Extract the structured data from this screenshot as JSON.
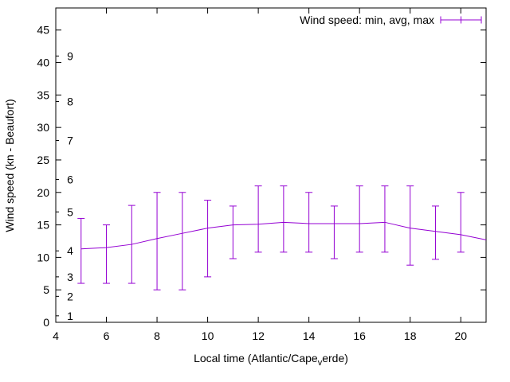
{
  "chart_data": {
    "type": "line",
    "title": "",
    "legend_label": "Wind speed: min, avg, max",
    "legend_position": "top-right",
    "xlabel_parts": {
      "pre": "Local time (Atlantic/Cape",
      "sub": "v",
      "post": "erde)"
    },
    "ylabel": "Wind speed (kn - Beaufort)",
    "xlim": [
      4,
      21
    ],
    "ylim": [
      0,
      48.4
    ],
    "xticks": [
      4,
      6,
      8,
      10,
      12,
      14,
      16,
      18,
      20
    ],
    "yticks": [
      0,
      5,
      10,
      15,
      20,
      25,
      30,
      35,
      40,
      45
    ],
    "beaufort_ticks": [
      {
        "label": "1",
        "kn": 1
      },
      {
        "label": "2",
        "kn": 4
      },
      {
        "label": "3",
        "kn": 7
      },
      {
        "label": "4",
        "kn": 11
      },
      {
        "label": "5",
        "kn": 17
      },
      {
        "label": "6",
        "kn": 22
      },
      {
        "label": "7",
        "kn": 28
      },
      {
        "label": "8",
        "kn": 34
      },
      {
        "label": "9",
        "kn": 41
      }
    ],
    "grid": false,
    "colors": {
      "series": "#9400d3",
      "axis": "#000000",
      "background": "#ffffff"
    },
    "points": [
      {
        "x": 5,
        "min": 6,
        "avg": 11.3,
        "max": 16
      },
      {
        "x": 6,
        "min": 6,
        "avg": 11.5,
        "max": 15
      },
      {
        "x": 7,
        "min": 6,
        "avg": 12,
        "max": 18
      },
      {
        "x": 8,
        "min": 5,
        "avg": 12.9,
        "max": 20
      },
      {
        "x": 9,
        "min": 5,
        "avg": 13.7,
        "max": 20
      },
      {
        "x": 10,
        "min": 7,
        "avg": 14.5,
        "max": 18.8
      },
      {
        "x": 11,
        "min": 9.8,
        "avg": 15,
        "max": 17.9
      },
      {
        "x": 12,
        "min": 10.8,
        "avg": 15.1,
        "max": 21
      },
      {
        "x": 13,
        "min": 10.8,
        "avg": 15.4,
        "max": 21
      },
      {
        "x": 14,
        "min": 10.8,
        "avg": 15.2,
        "max": 20
      },
      {
        "x": 15,
        "min": 9.8,
        "avg": 15.2,
        "max": 17.9
      },
      {
        "x": 16,
        "min": 10.8,
        "avg": 15.2,
        "max": 21
      },
      {
        "x": 17,
        "min": 10.8,
        "avg": 15.4,
        "max": 21
      },
      {
        "x": 18,
        "min": 8.8,
        "avg": 14.5,
        "max": 21
      },
      {
        "x": 19,
        "min": 9.7,
        "avg": 14,
        "max": 17.9
      },
      {
        "x": 20,
        "min": 10.8,
        "avg": 13.5,
        "max": 20
      },
      {
        "x": 21,
        "min": null,
        "avg": 12.7,
        "max": null
      }
    ]
  }
}
